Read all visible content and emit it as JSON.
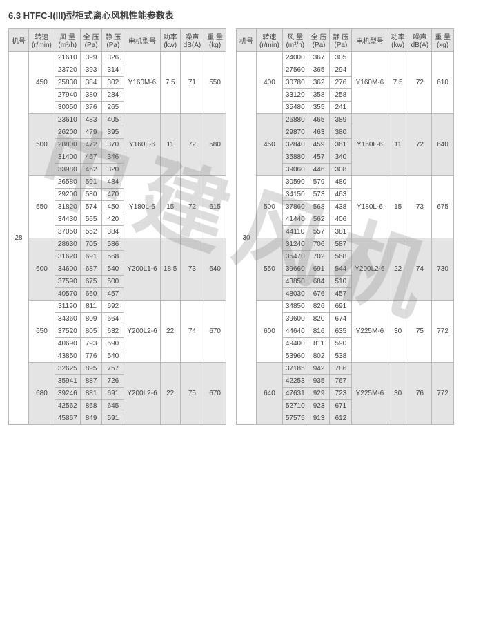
{
  "title": "6.3 HTFC-I(III)型柜式离心风机性能参数表",
  "watermark": "中建风机",
  "headers": {
    "machine_no": "机号",
    "speed": "转速\n(r/min)",
    "airflow": "风 量\n(m³/h)",
    "total_p": "全 压\n(Pa)",
    "static_p": "静 压\n(Pa)",
    "motor": "电机型号",
    "power": "功率\n(kw)",
    "noise": "噪声\ndB(A)",
    "weight": "重 量\n(kg)"
  },
  "left": {
    "machine_no": "28",
    "groups": [
      {
        "speed": "450",
        "motor": "Y160M-6",
        "power": "7.5",
        "noise": "71",
        "weight": "550",
        "grey": false,
        "rows": [
          [
            "21610",
            "399",
            "326"
          ],
          [
            "23720",
            "393",
            "314"
          ],
          [
            "25830",
            "384",
            "302"
          ],
          [
            "27940",
            "380",
            "284"
          ],
          [
            "30050",
            "376",
            "265"
          ]
        ]
      },
      {
        "speed": "500",
        "motor": "Y160L-6",
        "power": "11",
        "noise": "72",
        "weight": "580",
        "grey": true,
        "rows": [
          [
            "23610",
            "483",
            "405"
          ],
          [
            "26200",
            "479",
            "395"
          ],
          [
            "28800",
            "472",
            "370"
          ],
          [
            "31400",
            "467",
            "346"
          ],
          [
            "33980",
            "462",
            "320"
          ]
        ]
      },
      {
        "speed": "550",
        "motor": "Y180L-6",
        "power": "15",
        "noise": "72",
        "weight": "615",
        "grey": false,
        "rows": [
          [
            "26580",
            "591",
            "484"
          ],
          [
            "29200",
            "580",
            "470"
          ],
          [
            "31820",
            "574",
            "450"
          ],
          [
            "34430",
            "565",
            "420"
          ],
          [
            "37050",
            "552",
            "384"
          ]
        ]
      },
      {
        "speed": "600",
        "motor": "Y200L1-6",
        "power": "18.5",
        "noise": "73",
        "weight": "640",
        "grey": true,
        "rows": [
          [
            "28630",
            "705",
            "586"
          ],
          [
            "31620",
            "691",
            "568"
          ],
          [
            "34600",
            "687",
            "540"
          ],
          [
            "37590",
            "675",
            "500"
          ],
          [
            "40570",
            "660",
            "457"
          ]
        ]
      },
      {
        "speed": "650",
        "motor": "Y200L2-6",
        "power": "22",
        "noise": "74",
        "weight": "670",
        "grey": false,
        "rows": [
          [
            "31190",
            "811",
            "692"
          ],
          [
            "34360",
            "809",
            "664"
          ],
          [
            "37520",
            "805",
            "632"
          ],
          [
            "40690",
            "793",
            "590"
          ],
          [
            "43850",
            "776",
            "540"
          ]
        ]
      },
      {
        "speed": "680",
        "motor": "Y200L2-6",
        "power": "22",
        "noise": "75",
        "weight": "670",
        "grey": true,
        "rows": [
          [
            "32625",
            "895",
            "757"
          ],
          [
            "35941",
            "887",
            "726"
          ],
          [
            "39246",
            "881",
            "691"
          ],
          [
            "42562",
            "868",
            "645"
          ],
          [
            "45867",
            "849",
            "591"
          ]
        ]
      }
    ]
  },
  "right": {
    "machine_no": "30",
    "groups": [
      {
        "speed": "400",
        "motor": "Y160M-6",
        "power": "7.5",
        "noise": "72",
        "weight": "610",
        "grey": false,
        "rows": [
          [
            "24000",
            "367",
            "305"
          ],
          [
            "27560",
            "365",
            "294"
          ],
          [
            "30780",
            "362",
            "276"
          ],
          [
            "33120",
            "358",
            "258"
          ],
          [
            "35480",
            "355",
            "241"
          ]
        ]
      },
      {
        "speed": "450",
        "motor": "Y160L-6",
        "power": "11",
        "noise": "72",
        "weight": "640",
        "grey": true,
        "rows": [
          [
            "26880",
            "465",
            "389"
          ],
          [
            "29870",
            "463",
            "380"
          ],
          [
            "32840",
            "459",
            "361"
          ],
          [
            "35880",
            "457",
            "340"
          ],
          [
            "39060",
            "446",
            "308"
          ]
        ]
      },
      {
        "speed": "500",
        "motor": "Y180L-6",
        "power": "15",
        "noise": "73",
        "weight": "675",
        "grey": false,
        "rows": [
          [
            "30590",
            "579",
            "480"
          ],
          [
            "34150",
            "573",
            "463"
          ],
          [
            "37860",
            "568",
            "438"
          ],
          [
            "41440",
            "562",
            "406"
          ],
          [
            "44110",
            "557",
            "381"
          ]
        ]
      },
      {
        "speed": "550",
        "motor": "Y200L2-6",
        "power": "22",
        "noise": "74",
        "weight": "730",
        "grey": true,
        "rows": [
          [
            "31240",
            "706",
            "587"
          ],
          [
            "35470",
            "702",
            "568"
          ],
          [
            "39660",
            "691",
            "544"
          ],
          [
            "43850",
            "684",
            "510"
          ],
          [
            "48030",
            "676",
            "457"
          ]
        ]
      },
      {
        "speed": "600",
        "motor": "Y225M-6",
        "power": "30",
        "noise": "75",
        "weight": "772",
        "grey": false,
        "rows": [
          [
            "34850",
            "826",
            "691"
          ],
          [
            "39600",
            "820",
            "674"
          ],
          [
            "44640",
            "816",
            "635"
          ],
          [
            "49400",
            "811",
            "590"
          ],
          [
            "53960",
            "802",
            "538"
          ]
        ]
      },
      {
        "speed": "640",
        "motor": "Y225M-6",
        "power": "30",
        "noise": "76",
        "weight": "772",
        "grey": true,
        "rows": [
          [
            "37185",
            "942",
            "786"
          ],
          [
            "42253",
            "935",
            "767"
          ],
          [
            "47631",
            "929",
            "723"
          ],
          [
            "52710",
            "923",
            "671"
          ],
          [
            "57575",
            "913",
            "612"
          ]
        ]
      }
    ]
  }
}
